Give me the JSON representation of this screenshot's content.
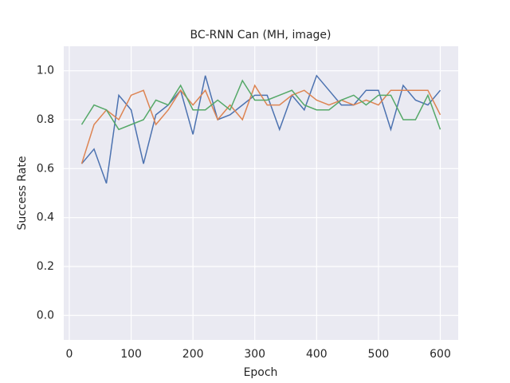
{
  "chart_data": {
    "type": "line",
    "title": "BC-RNN Can (MH, image)",
    "x_label": "Epoch",
    "y_label": "Success Rate",
    "x": [
      20,
      40,
      60,
      80,
      100,
      120,
      140,
      160,
      180,
      200,
      220,
      240,
      260,
      280,
      300,
      320,
      340,
      360,
      380,
      400,
      420,
      440,
      460,
      480,
      500,
      520,
      540,
      560,
      580,
      600
    ],
    "series": [
      {
        "color": "#4c72b0",
        "values": [
          0.62,
          0.68,
          0.54,
          0.9,
          0.84,
          0.62,
          0.82,
          0.86,
          0.92,
          0.74,
          0.98,
          0.8,
          0.82,
          0.86,
          0.9,
          0.9,
          0.76,
          0.9,
          0.84,
          0.98,
          0.92,
          0.86,
          0.86,
          0.92,
          0.92,
          0.76,
          0.94,
          0.88,
          0.86,
          0.92
        ]
      },
      {
        "color": "#dd8452",
        "values": [
          0.62,
          0.78,
          0.84,
          0.8,
          0.9,
          0.92,
          0.78,
          0.84,
          0.92,
          0.86,
          0.92,
          0.8,
          0.86,
          0.8,
          0.94,
          0.86,
          0.86,
          0.9,
          0.92,
          0.88,
          0.86,
          0.88,
          0.86,
          0.88,
          0.86,
          0.92,
          0.92,
          0.92,
          0.92,
          0.82
        ]
      },
      {
        "color": "#55a868",
        "values": [
          0.78,
          0.86,
          0.84,
          0.76,
          0.78,
          0.8,
          0.88,
          0.86,
          0.94,
          0.84,
          0.84,
          0.88,
          0.84,
          0.96,
          0.88,
          0.88,
          0.9,
          0.92,
          0.86,
          0.84,
          0.84,
          0.88,
          0.9,
          0.86,
          0.9,
          0.9,
          0.8,
          0.8,
          0.9,
          0.76
        ]
      }
    ],
    "xlim": [
      -9,
      629
    ],
    "xticks": [
      0,
      100,
      200,
      300,
      400,
      500,
      600
    ],
    "ylim": [
      -0.1,
      1.1
    ],
    "yticks": [
      {
        "value": 0,
        "label": "0.0"
      },
      0.2,
      0.4,
      0.6,
      0.8,
      {
        "value": 1,
        "label": "1.0"
      }
    ],
    "grid": true
  }
}
